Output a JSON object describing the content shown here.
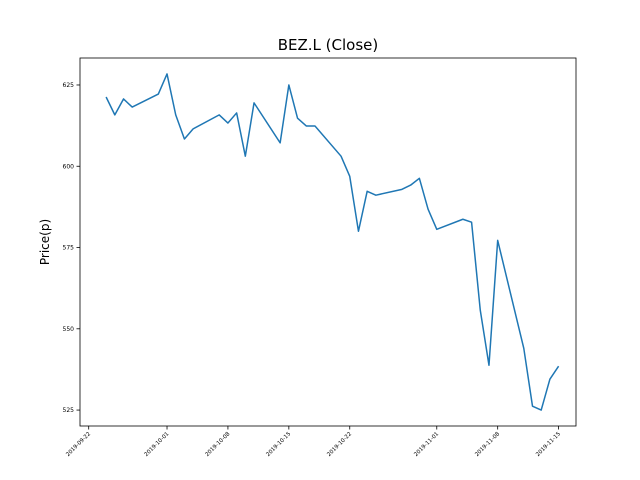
{
  "chart_data": {
    "type": "line",
    "title": "BEZ.L (Close)",
    "y_label": "Price(p)",
    "x": [
      "2019-09-24",
      "2019-09-25",
      "2019-09-26",
      "2019-09-27",
      "2019-09-30",
      "2019-10-01",
      "2019-10-02",
      "2019-10-03",
      "2019-10-04",
      "2019-10-07",
      "2019-10-08",
      "2019-10-09",
      "2019-10-10",
      "2019-10-11",
      "2019-10-14",
      "2019-10-15",
      "2019-10-16",
      "2019-10-17",
      "2019-10-18",
      "2019-10-21",
      "2019-10-22",
      "2019-10-23",
      "2019-10-24",
      "2019-10-25",
      "2019-10-28",
      "2019-10-29",
      "2019-10-30",
      "2019-10-31",
      "2019-11-01",
      "2019-11-04",
      "2019-11-05",
      "2019-11-06",
      "2019-11-07",
      "2019-11-08",
      "2019-11-11",
      "2019-11-12",
      "2019-11-13",
      "2019-11-14",
      "2019-11-15"
    ],
    "series": [
      {
        "name": "Close",
        "color": "#1f77b4",
        "values": [
          621.3,
          615.8,
          620.7,
          618.2,
          622.2,
          628.4,
          615.8,
          608.4,
          611.5,
          615.8,
          613.3,
          616.4,
          603.1,
          619.5,
          607.2,
          625,
          614.8,
          612.4,
          612.4,
          603.1,
          596.9,
          580,
          592.3,
          591.1,
          592.9,
          594.2,
          596.3,
          586.8,
          580.6,
          583.7,
          582.8,
          555.7,
          538.8,
          577.2,
          544,
          526.2,
          525,
          534.5,
          538.5
        ]
      }
    ],
    "xlim": [
      "2019-09-21",
      "2019-11-17"
    ],
    "xticks": [
      "2019-09-22",
      "2019-10-01",
      "2019-10-08",
      "2019-10-15",
      "2019-10-22",
      "2019-11-01",
      "2019-11-08",
      "2019-11-15"
    ],
    "ylim": [
      520.1,
      633.3
    ],
    "yticks": [
      525,
      550,
      575,
      600,
      625
    ]
  }
}
